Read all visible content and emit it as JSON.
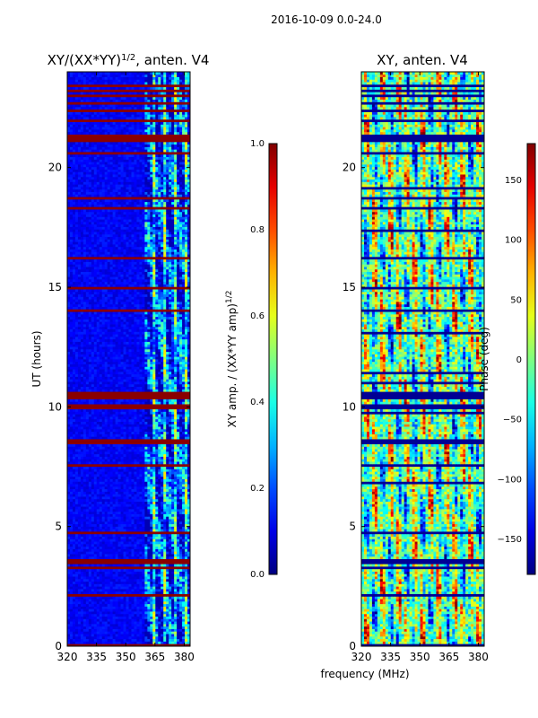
{
  "suptitle": "2016-10-09 0.0-24.0",
  "chart_data": [
    {
      "type": "heatmap",
      "title": "XY/(XX*YY)",
      "title_superscript": "1/2",
      "title_suffix": ", anten. V4",
      "xlabel": "",
      "ylabel": "UT (hours)",
      "xlim": [
        320,
        383
      ],
      "ylim": [
        0,
        24
      ],
      "xticks": [
        320,
        335,
        350,
        365,
        380
      ],
      "yticks": [
        0,
        5,
        10,
        15,
        20
      ],
      "colorbar": {
        "label": "XY amp. / (XX*YY amp)",
        "label_superscript": "1/2",
        "range": [
          0.0,
          1.0
        ],
        "ticks": [
          "0.0",
          "0.2",
          "0.4",
          "0.6",
          "0.8",
          "1.0"
        ],
        "colormap": "jet"
      },
      "flagged_hours": [
        0.05,
        2.1,
        2.15,
        3.3,
        3.45,
        3.6,
        4.8,
        7.6,
        8.5,
        8.65,
        10.0,
        10.05,
        10.35,
        10.5,
        10.6,
        14.0,
        15.0,
        16.2,
        16.25,
        18.3,
        18.7,
        20.6,
        21.1,
        21.15,
        21.25,
        21.35,
        22.0,
        22.4,
        22.7,
        23.0,
        23.2,
        23.45
      ],
      "band_model": {
        "low_freq_level": 0.08,
        "high_band_mhz": [
          360,
          383
        ],
        "high_band_level": 0.35
      }
    },
    {
      "type": "heatmap",
      "title": "XY, anten. V4",
      "xlabel": "frequency (MHz)",
      "ylabel": "",
      "xlim": [
        320,
        383
      ],
      "ylim": [
        0,
        24
      ],
      "xticks": [
        320,
        335,
        350,
        365,
        380
      ],
      "yticks": [
        0,
        5,
        10,
        15,
        20
      ],
      "colorbar": {
        "label": "Phase (deg)",
        "range": [
          -180,
          180
        ],
        "ticks": [
          "150",
          "100",
          "50",
          "0",
          "−50",
          "−100",
          "−150"
        ],
        "colormap": "jet"
      }
    }
  ]
}
